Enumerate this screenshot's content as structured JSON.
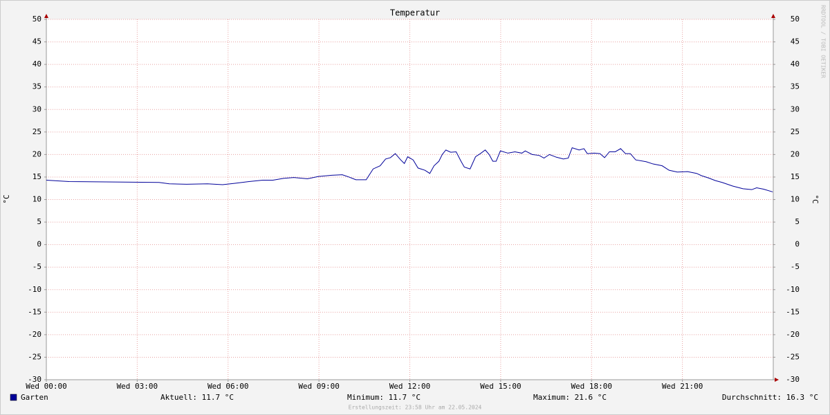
{
  "chart_data": {
    "type": "line",
    "title": "Temperatur",
    "ylabel": "°C",
    "x": [
      0,
      0.75,
      3.72,
      4.06,
      4.63,
      5.32,
      5.82,
      6.23,
      6.69,
      7.14,
      7.48,
      7.83,
      8.17,
      8.62,
      8.97,
      9.42,
      9.77,
      9.99,
      10.22,
      10.56,
      10.79,
      11.02,
      11.2,
      11.36,
      11.52,
      11.7,
      11.82,
      11.93,
      12.11,
      12.27,
      12.5,
      12.66,
      12.8,
      12.96,
      13.07,
      13.19,
      13.35,
      13.53,
      13.69,
      13.8,
      13.99,
      14.17,
      14.33,
      14.49,
      14.62,
      14.74,
      14.85,
      14.99,
      15.24,
      15.47,
      15.7,
      15.81,
      16.04,
      16.27,
      16.43,
      16.61,
      16.84,
      17.07,
      17.23,
      17.36,
      17.59,
      17.75,
      17.86,
      18.09,
      18.28,
      18.43,
      18.59,
      18.78,
      18.96,
      19.12,
      19.28,
      19.46,
      19.8,
      20.03,
      20.33,
      20.56,
      20.83,
      21.17,
      21.47,
      21.63,
      21.86,
      22.09,
      22.31,
      22.66,
      23.0,
      23.29,
      23.45,
      23.68,
      23.98
    ],
    "series": [
      {
        "name": "Garten",
        "color": "#000099",
        "values": [
          14.3,
          14.0,
          13.8,
          13.5,
          13.4,
          13.5,
          13.3,
          13.6,
          14.0,
          14.3,
          14.3,
          14.7,
          14.9,
          14.6,
          15.1,
          15.4,
          15.5,
          15.0,
          14.4,
          14.4,
          16.8,
          17.5,
          19.0,
          19.3,
          20.2,
          18.8,
          18.0,
          19.5,
          18.8,
          17.0,
          16.5,
          15.8,
          17.5,
          18.5,
          20.0,
          21.0,
          20.5,
          20.6,
          18.5,
          17.2,
          16.8,
          19.5,
          20.2,
          21.0,
          20.0,
          18.5,
          18.5,
          20.8,
          20.3,
          20.6,
          20.3,
          20.8,
          20.0,
          19.8,
          19.2,
          20.0,
          19.4,
          19.0,
          19.2,
          21.5,
          21.0,
          21.3,
          20.2,
          20.3,
          20.2,
          19.3,
          20.6,
          20.6,
          21.3,
          20.2,
          20.2,
          18.8,
          18.4,
          17.9,
          17.5,
          16.5,
          16.1,
          16.2,
          15.8,
          15.3,
          14.8,
          14.2,
          13.8,
          13.0,
          12.4,
          12.2,
          12.6,
          12.3,
          11.7
        ]
      }
    ],
    "xlim": [
      0,
      24
    ],
    "xticks": [
      {
        "value": 0,
        "label": "Wed 00:00"
      },
      {
        "value": 3,
        "label": "Wed 03:00"
      },
      {
        "value": 6,
        "label": "Wed 06:00"
      },
      {
        "value": 9,
        "label": "Wed 09:00"
      },
      {
        "value": 12,
        "label": "Wed 12:00"
      },
      {
        "value": 15,
        "label": "Wed 15:00"
      },
      {
        "value": 18,
        "label": "Wed 18:00"
      },
      {
        "value": 21,
        "label": "Wed 21:00"
      }
    ],
    "ylim": [
      -30,
      50
    ],
    "yticks": [
      50,
      45,
      40,
      35,
      30,
      25,
      20,
      15,
      10,
      5,
      0,
      -5,
      -10,
      -15,
      -20,
      -25,
      -30
    ],
    "grid": true,
    "legend_stats": [
      "Aktuell: 11.7 °C",
      "Minimum: 11.7 °C",
      "Maximum: 21.6 °C",
      "Durchschnitt: 16.3 °C"
    ],
    "footer": "Erstellungszeit: 23:58 Uhr am 22.05.2024",
    "watermark": "RRDTOOL / TOBI OETIKER"
  }
}
